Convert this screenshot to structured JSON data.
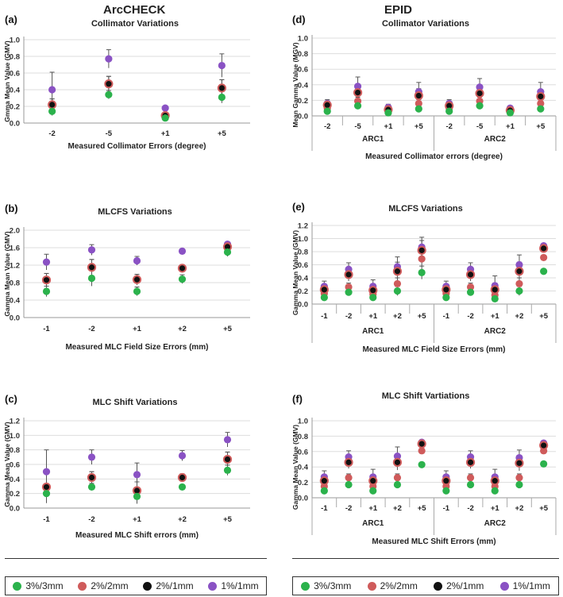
{
  "headings": {
    "left": "ArcCHECK",
    "right": "EPID"
  },
  "colors": {
    "c0": "#2bb24c",
    "c1": "#cf5b5b",
    "c2": "#111111",
    "c3": "#8a52c4",
    "err": "#555555",
    "grid": "#dddddd"
  },
  "legend": [
    {
      "label": "3%/3mm",
      "color": "#2bb24c"
    },
    {
      "label": "2%/2mm",
      "color": "#cf5b5b"
    },
    {
      "label": "2%/1mm",
      "color": "#111111"
    },
    {
      "label": "1%/1mm",
      "color": "#8a52c4"
    }
  ],
  "chart_data": [
    {
      "panel": "(a)",
      "type": "scatter",
      "title": "Collimator Variations",
      "ylabel": "Gmma Mean Value (GMV)",
      "xlabel": "Measured Collimator Errors (degree)",
      "ylim": [
        0,
        1.0
      ],
      "yticks": [
        "0.0",
        "0.2",
        "0.4",
        "0.6",
        "0.8",
        "1.0"
      ],
      "categories": [
        "-2",
        "-5",
        "+1",
        "+5"
      ],
      "groups": [],
      "series": [
        {
          "name": "3%/3mm",
          "values": [
            0.14,
            0.34,
            0.06,
            0.31
          ],
          "err": [
            0.05,
            0.05,
            0.02,
            0.07
          ]
        },
        {
          "name": "2%/2mm",
          "values": [
            0.22,
            0.47,
            0.09,
            0.42
          ],
          "err": [
            0.07,
            0.09,
            0.02,
            0.1
          ]
        },
        {
          "name": "2%/1mm",
          "values": [
            0.22,
            0.47,
            0.09,
            0.42
          ],
          "err": [
            0.07,
            0.09,
            0.02,
            0.1
          ]
        },
        {
          "name": "1%/1mm",
          "values": [
            0.4,
            0.77,
            0.18,
            0.69
          ],
          "err": [
            0.21,
            0.11,
            0.02,
            0.14
          ]
        }
      ]
    },
    {
      "panel": "(b)",
      "type": "scatter",
      "title": "MLCFS Variations",
      "ylabel": "Gamma Mean Value (GMV)",
      "xlabel": "Measured MLC Field Size Errors (mm)",
      "ylim": [
        0,
        2.0
      ],
      "yticks": [
        "0.0",
        "0.4",
        "0.8",
        "1.2",
        "1.6",
        "2.0"
      ],
      "categories": [
        "-1",
        "-2",
        "+1",
        "+2",
        "+5"
      ],
      "groups": [],
      "series": [
        {
          "name": "3%/3mm",
          "values": [
            0.6,
            0.9,
            0.6,
            0.88,
            1.5
          ],
          "err": [
            0.12,
            0.18,
            0.1,
            0.1,
            0.1
          ]
        },
        {
          "name": "2%/2mm",
          "values": [
            0.86,
            1.15,
            0.87,
            1.13,
            1.62
          ],
          "err": [
            0.15,
            0.18,
            0.12,
            0.08,
            0.06
          ]
        },
        {
          "name": "2%/1mm",
          "values": [
            0.86,
            1.15,
            0.87,
            1.13,
            1.62
          ],
          "err": [
            0.15,
            0.18,
            0.12,
            0.08,
            0.06
          ]
        },
        {
          "name": "1%/1mm",
          "values": [
            1.27,
            1.55,
            1.3,
            1.52,
            1.68
          ],
          "err": [
            0.18,
            0.12,
            0.1,
            0.05,
            0.04
          ]
        }
      ]
    },
    {
      "panel": "(c)",
      "type": "scatter",
      "title": "MLC Shift Variations",
      "ylabel": "Gamma Mean Value (GMV)",
      "xlabel": "Measured MLC Shift errors (mm)",
      "ylim": [
        0,
        1.2
      ],
      "yticks": [
        "0.0",
        "0.2",
        "0.4",
        "0.6",
        "0.8",
        "1.0",
        "1.2"
      ],
      "categories": [
        "-1",
        "-2",
        "+1",
        "+2",
        "+5"
      ],
      "groups": [],
      "series": [
        {
          "name": "3%/3mm",
          "values": [
            0.2,
            0.29,
            0.16,
            0.29,
            0.52
          ],
          "err": [
            0.12,
            0.05,
            0.1,
            0.03,
            0.07
          ]
        },
        {
          "name": "2%/2mm",
          "values": [
            0.29,
            0.42,
            0.24,
            0.42,
            0.67
          ],
          "err": [
            0.22,
            0.08,
            0.12,
            0.05,
            0.1
          ]
        },
        {
          "name": "2%/1mm",
          "values": [
            0.29,
            0.42,
            0.24,
            0.42,
            0.67
          ],
          "err": [
            0.22,
            0.08,
            0.12,
            0.05,
            0.1
          ]
        },
        {
          "name": "1%/1mm",
          "values": [
            0.5,
            0.7,
            0.46,
            0.72,
            0.94
          ],
          "err": [
            0.3,
            0.1,
            0.16,
            0.07,
            0.1
          ]
        }
      ]
    },
    {
      "panel": "(d)",
      "type": "scatter",
      "title": "Collimator Variations",
      "ylabel": "Mean Gamma Value (MGV)",
      "xlabel": "Measured Collimator errors (degree)",
      "ylim": [
        0,
        1.0
      ],
      "yticks": [
        "0.0",
        "0.2",
        "0.4",
        "0.6",
        "0.8",
        "1.0"
      ],
      "categories": [
        "-2",
        "-5",
        "+1",
        "+5",
        "-2",
        "-5",
        "+1",
        "+5"
      ],
      "groups": [
        "ARC1",
        "ARC2"
      ],
      "series": [
        {
          "name": "3%/3mm",
          "values": [
            0.06,
            0.13,
            0.04,
            0.09,
            0.06,
            0.13,
            0.04,
            0.09
          ],
          "err": [
            0.02,
            0.03,
            0.02,
            0.03,
            0.02,
            0.03,
            0.02,
            0.03
          ]
        },
        {
          "name": "2%/2mm",
          "values": [
            0.1,
            0.19,
            0.06,
            0.16,
            0.1,
            0.19,
            0.06,
            0.16
          ],
          "err": [
            0.03,
            0.05,
            0.02,
            0.05,
            0.03,
            0.05,
            0.02,
            0.05
          ]
        },
        {
          "name": "2%/1mm",
          "values": [
            0.14,
            0.3,
            0.08,
            0.26,
            0.13,
            0.29,
            0.07,
            0.25
          ],
          "err": [
            0.05,
            0.1,
            0.03,
            0.09,
            0.04,
            0.1,
            0.03,
            0.09
          ]
        },
        {
          "name": "1%/1mm",
          "values": [
            0.16,
            0.38,
            0.11,
            0.31,
            0.16,
            0.37,
            0.1,
            0.31
          ],
          "err": [
            0.05,
            0.12,
            0.04,
            0.12,
            0.05,
            0.11,
            0.03,
            0.12
          ]
        }
      ]
    },
    {
      "panel": "(e)",
      "type": "scatter",
      "title": "MLCFS Variations",
      "ylabel": "Gamma Mean Value (GMV)",
      "xlabel": "Measured MLC Field Size Errors (mm)",
      "ylim": [
        0,
        1.2
      ],
      "yticks": [
        "0.0",
        "0.2",
        "0.4",
        "0.6",
        "0.8",
        "1.0",
        "1.2"
      ],
      "categories": [
        "-1",
        "-2",
        "+1",
        "+2",
        "+5",
        "-1",
        "-2",
        "+1",
        "+2",
        "+5"
      ],
      "groups": [
        "ARC1",
        "ARC2"
      ],
      "series": [
        {
          "name": "3%/3mm",
          "values": [
            0.1,
            0.18,
            0.1,
            0.2,
            0.48,
            0.1,
            0.18,
            0.08,
            0.2,
            0.5
          ],
          "err": [
            0.05,
            0.05,
            0.04,
            0.07,
            0.1,
            0.05,
            0.05,
            0.04,
            0.07,
            0.02
          ]
        },
        {
          "name": "2%/2mm",
          "values": [
            0.16,
            0.26,
            0.15,
            0.31,
            0.69,
            0.16,
            0.26,
            0.14,
            0.31,
            0.71
          ],
          "err": [
            0.05,
            0.06,
            0.05,
            0.09,
            0.12,
            0.05,
            0.06,
            0.05,
            0.09,
            0.03
          ]
        },
        {
          "name": "2%/1mm",
          "values": [
            0.22,
            0.45,
            0.21,
            0.5,
            0.82,
            0.22,
            0.45,
            0.22,
            0.5,
            0.85
          ],
          "err": [
            0.08,
            0.1,
            0.1,
            0.14,
            0.15,
            0.08,
            0.1,
            0.1,
            0.14,
            0.03
          ]
        },
        {
          "name": "1%/1mm",
          "values": [
            0.27,
            0.53,
            0.27,
            0.57,
            0.87,
            0.27,
            0.53,
            0.28,
            0.6,
            0.89
          ],
          "err": [
            0.08,
            0.1,
            0.1,
            0.15,
            0.15,
            0.08,
            0.1,
            0.15,
            0.15,
            0.03
          ]
        }
      ]
    },
    {
      "panel": "(f)",
      "type": "scatter",
      "title": "MLC Shift Vartiations",
      "ylabel": "Gamma Mean Value (GMV)",
      "xlabel": "Measured MLC Shift Errors (mm)",
      "ylim": [
        0,
        1.0
      ],
      "yticks": [
        "0.0",
        "0.2",
        "0.4",
        "0.6",
        "0.8",
        "1.0"
      ],
      "categories": [
        "-1",
        "-2",
        "+1",
        "+2",
        "+5",
        "-1",
        "-2",
        "+1",
        "+2",
        "+5"
      ],
      "groups": [
        "ARC1",
        "ARC2"
      ],
      "series": [
        {
          "name": "3%/3mm",
          "values": [
            0.09,
            0.17,
            0.09,
            0.17,
            0.43,
            0.09,
            0.17,
            0.09,
            0.17,
            0.44
          ],
          "err": [
            0.03,
            0.03,
            0.03,
            0.03,
            0.02,
            0.03,
            0.03,
            0.03,
            0.03,
            0.02
          ]
        },
        {
          "name": "2%/2mm",
          "values": [
            0.15,
            0.26,
            0.15,
            0.26,
            0.61,
            0.15,
            0.26,
            0.15,
            0.26,
            0.61
          ],
          "err": [
            0.05,
            0.05,
            0.05,
            0.05,
            0.03,
            0.05,
            0.05,
            0.05,
            0.05,
            0.03
          ]
        },
        {
          "name": "2%/1mm",
          "values": [
            0.22,
            0.46,
            0.22,
            0.46,
            0.7,
            0.22,
            0.46,
            0.22,
            0.45,
            0.68
          ],
          "err": [
            0.07,
            0.08,
            0.07,
            0.1,
            0.03,
            0.07,
            0.08,
            0.07,
            0.1,
            0.03
          ]
        },
        {
          "name": "1%/1mm",
          "values": [
            0.27,
            0.53,
            0.27,
            0.54,
            0.72,
            0.27,
            0.53,
            0.27,
            0.52,
            0.71
          ],
          "err": [
            0.08,
            0.08,
            0.1,
            0.12,
            0.03,
            0.08,
            0.08,
            0.1,
            0.1,
            0.03
          ]
        }
      ]
    }
  ]
}
